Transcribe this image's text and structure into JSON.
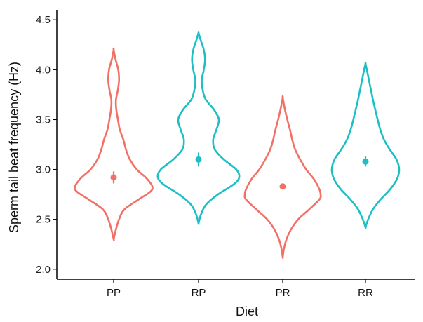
{
  "chart_data": {
    "type": "violin",
    "xlabel": "Diet",
    "ylabel": "Sperm tail beat frequency (Hz)",
    "ylim": [
      1.9,
      4.6
    ],
    "yticks": [
      "2.0",
      "2.5",
      "3.0",
      "3.5",
      "4.0",
      "4.5"
    ],
    "grid": false,
    "legend": "none",
    "categories": [
      "PP",
      "RP",
      "PR",
      "RR"
    ],
    "colors": [
      "#f27066",
      "#1cbfc4",
      "#f27066",
      "#1cbfc4"
    ],
    "means": [
      2.92,
      3.1,
      2.83,
      3.08
    ],
    "mean_error": [
      0.06,
      0.07,
      0.03,
      0.05
    ],
    "violins": [
      {
        "category": "PP",
        "min": 2.3,
        "max": 4.2,
        "profile": [
          [
            2.3,
            0.0
          ],
          [
            2.4,
            0.06
          ],
          [
            2.5,
            0.14
          ],
          [
            2.6,
            0.28
          ],
          [
            2.7,
            0.65
          ],
          [
            2.8,
            1.0
          ],
          [
            2.9,
            0.88
          ],
          [
            3.0,
            0.6
          ],
          [
            3.1,
            0.42
          ],
          [
            3.2,
            0.32
          ],
          [
            3.3,
            0.25
          ],
          [
            3.4,
            0.16
          ],
          [
            3.5,
            0.11
          ],
          [
            3.6,
            0.07
          ],
          [
            3.7,
            0.06
          ],
          [
            3.8,
            0.11
          ],
          [
            3.9,
            0.14
          ],
          [
            4.0,
            0.12
          ],
          [
            4.1,
            0.05
          ],
          [
            4.2,
            0.0
          ]
        ]
      },
      {
        "category": "RP",
        "min": 2.46,
        "max": 4.37,
        "profile": [
          [
            2.46,
            0.0
          ],
          [
            2.55,
            0.06
          ],
          [
            2.65,
            0.19
          ],
          [
            2.75,
            0.48
          ],
          [
            2.85,
            0.86
          ],
          [
            2.92,
            1.0
          ],
          [
            3.0,
            0.93
          ],
          [
            3.1,
            0.62
          ],
          [
            3.2,
            0.4
          ],
          [
            3.3,
            0.36
          ],
          [
            3.4,
            0.44
          ],
          [
            3.5,
            0.5
          ],
          [
            3.6,
            0.38
          ],
          [
            3.7,
            0.18
          ],
          [
            3.8,
            0.1
          ],
          [
            3.9,
            0.08
          ],
          [
            4.0,
            0.13
          ],
          [
            4.1,
            0.16
          ],
          [
            4.2,
            0.13
          ],
          [
            4.3,
            0.05
          ],
          [
            4.37,
            0.0
          ]
        ]
      },
      {
        "category": "PR",
        "min": 2.12,
        "max": 3.72,
        "profile": [
          [
            2.12,
            0.0
          ],
          [
            2.2,
            0.03
          ],
          [
            2.3,
            0.1
          ],
          [
            2.4,
            0.22
          ],
          [
            2.5,
            0.41
          ],
          [
            2.6,
            0.7
          ],
          [
            2.7,
            0.97
          ],
          [
            2.75,
            1.0
          ],
          [
            2.8,
            0.97
          ],
          [
            2.9,
            0.83
          ],
          [
            3.0,
            0.62
          ],
          [
            3.1,
            0.46
          ],
          [
            3.2,
            0.33
          ],
          [
            3.3,
            0.25
          ],
          [
            3.4,
            0.19
          ],
          [
            3.5,
            0.12
          ],
          [
            3.6,
            0.06
          ],
          [
            3.72,
            0.0
          ]
        ]
      },
      {
        "category": "RR",
        "min": 2.42,
        "max": 4.06,
        "profile": [
          [
            2.42,
            0.0
          ],
          [
            2.5,
            0.08
          ],
          [
            2.6,
            0.22
          ],
          [
            2.7,
            0.45
          ],
          [
            2.8,
            0.73
          ],
          [
            2.9,
            0.93
          ],
          [
            3.0,
            1.0
          ],
          [
            3.1,
            0.92
          ],
          [
            3.2,
            0.72
          ],
          [
            3.3,
            0.55
          ],
          [
            3.4,
            0.44
          ],
          [
            3.5,
            0.36
          ],
          [
            3.6,
            0.29
          ],
          [
            3.7,
            0.22
          ],
          [
            3.8,
            0.16
          ],
          [
            3.9,
            0.1
          ],
          [
            4.0,
            0.04
          ],
          [
            4.06,
            0.0
          ]
        ]
      }
    ]
  }
}
